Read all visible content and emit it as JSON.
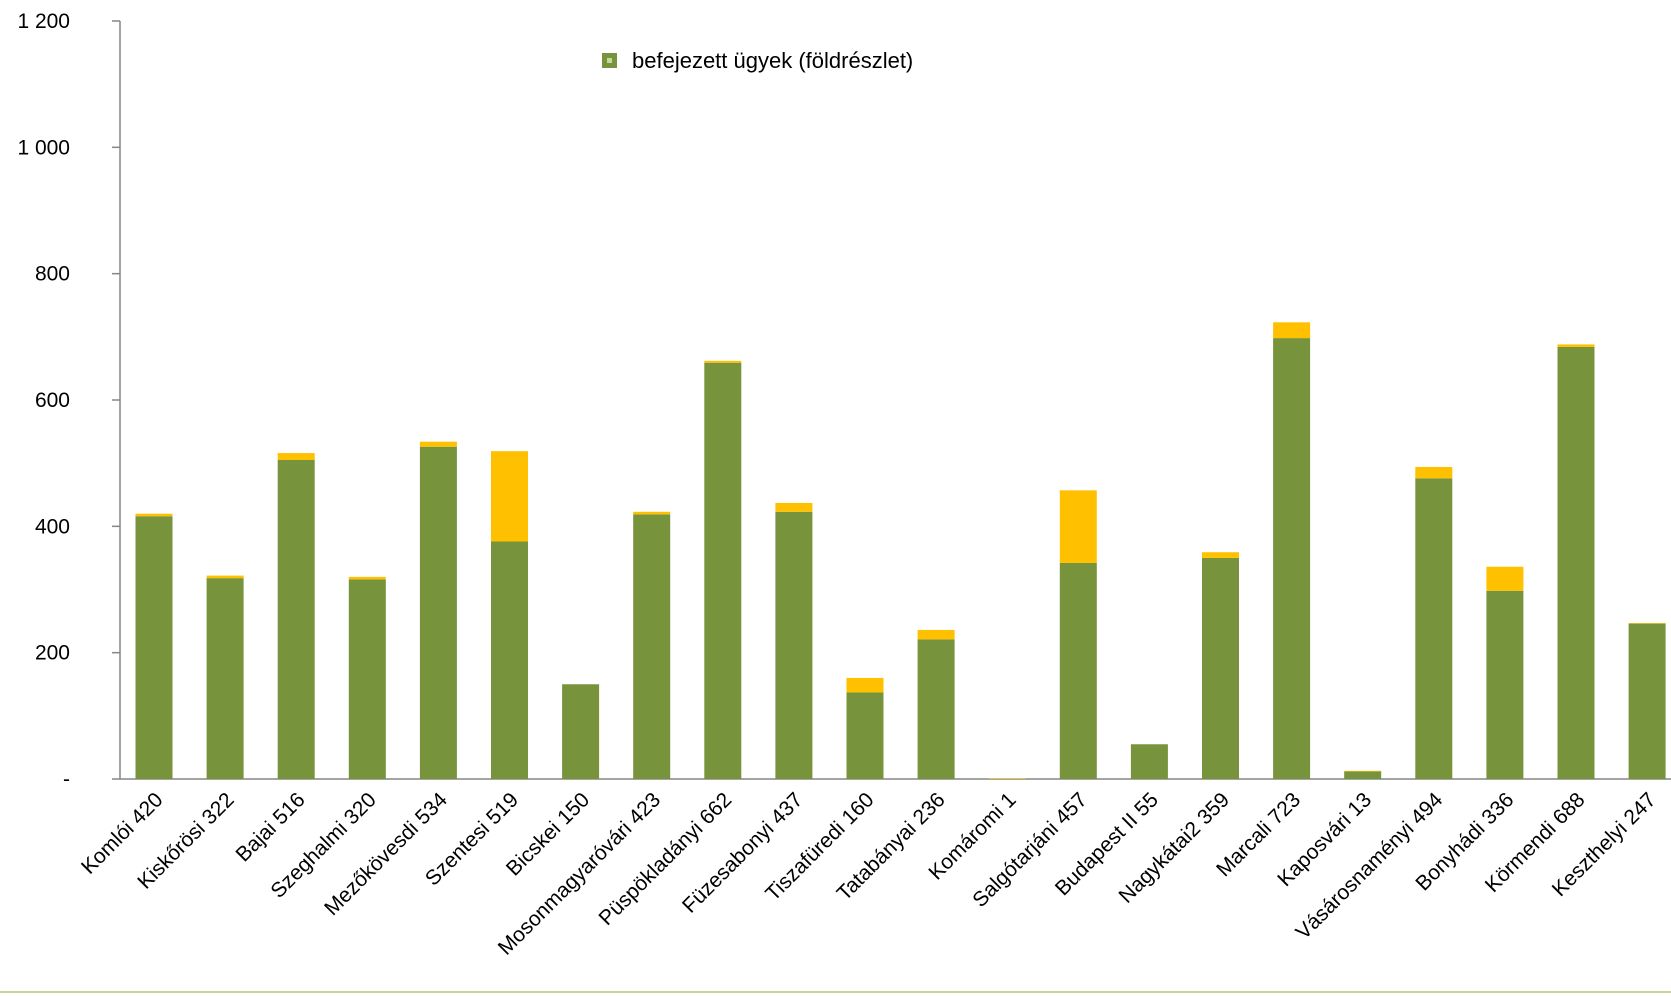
{
  "chart_data": {
    "type": "bar",
    "stacked": true,
    "categories": [
      "Komlói  420",
      "Kiskőrösi  322",
      "Bajai  516",
      "Szeghalmi  320",
      "Mezőkövesdi  534",
      "Szentesi  519",
      "Bicskei  150",
      "Mosonmagyaróvári  423",
      "Püspökladányi  662",
      "Füzesabonyi  437",
      "Tiszafüredi  160",
      "Tatabányai  236",
      "Komáromi  1",
      "Salgótarjáni  457",
      "Budapest II  55",
      "Nagykátai2  359",
      "Marcali  723",
      "Kaposvári  13",
      "Vásárosnaményi  494",
      "Bonyhádi  336",
      "Körmendi  688",
      "Keszthelyi  247"
    ],
    "series": [
      {
        "name": "befejezett ügyek (földrészlet)",
        "color": "#77933C",
        "values": [
          416,
          318,
          505,
          316,
          526,
          376,
          150,
          419,
          659,
          423,
          137,
          221,
          0,
          342,
          55,
          350,
          698,
          12,
          476,
          298,
          684,
          246
        ]
      },
      {
        "color": "#FFC000",
        "values": [
          4,
          4,
          11,
          4,
          8,
          143,
          0,
          4,
          3,
          14,
          23,
          15,
          1,
          115,
          0,
          9,
          25,
          1,
          18,
          38,
          4,
          1
        ]
      }
    ],
    "yaxis": {
      "min": 0,
      "max": 1200,
      "ticks": [
        0,
        200,
        400,
        600,
        800,
        1000,
        1200
      ],
      "tick_labels": [
        "-",
        "200",
        "400",
        "600",
        "800",
        "1 000",
        "1 200"
      ]
    },
    "legend": {
      "position": "top-center",
      "label": "befejezett ügyek (földrészlet)"
    },
    "grid": false,
    "footer_line_color": "#C3D69B"
  }
}
